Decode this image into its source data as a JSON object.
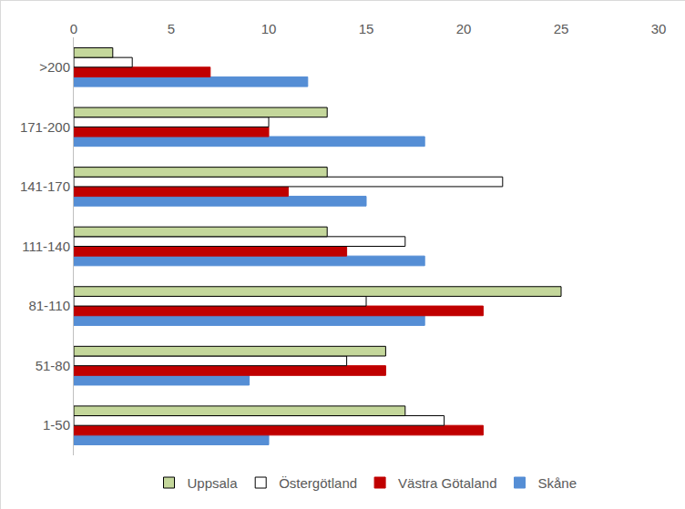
{
  "chart_data": {
    "type": "bar",
    "orientation": "horizontal",
    "categories": [
      "1-50",
      "51-80",
      "81-110",
      "111-140",
      "141-170",
      "171-200",
      ">200"
    ],
    "series": [
      {
        "name": "Uppsala",
        "color": "#c4d79b",
        "values": [
          17,
          16,
          25,
          13,
          13,
          13,
          2
        ]
      },
      {
        "name": "Östergötland",
        "color": "#ffffff",
        "values": [
          19,
          14,
          15,
          17,
          22,
          10,
          3
        ]
      },
      {
        "name": "Västra Götaland",
        "color": "#c00000",
        "values": [
          21,
          16,
          21,
          14,
          11,
          10,
          7
        ]
      },
      {
        "name": "Skåne",
        "color": "#558ed5",
        "values": [
          10,
          9,
          18,
          18,
          15,
          18,
          12
        ]
      }
    ],
    "xlim": [
      0,
      30
    ],
    "xticks": [
      0,
      5,
      10,
      15,
      20,
      25,
      30
    ],
    "grid": false,
    "legend": "bottom"
  }
}
